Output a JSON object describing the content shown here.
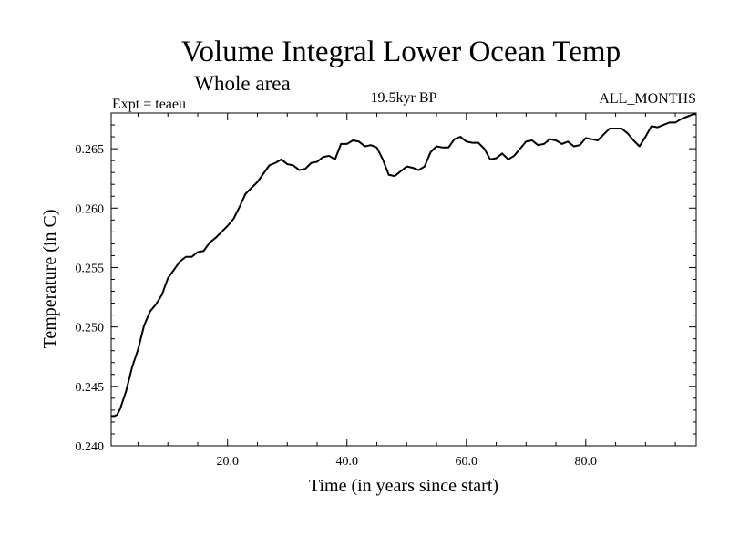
{
  "chart_data": {
    "type": "line",
    "title": "Volume Integral Lower Ocean Temp",
    "subtitle": "Whole area",
    "left_label": "Expt = teaeu",
    "center_label": "19.5kyr BP",
    "right_label": "ALL_MONTHS",
    "xlabel": "Time (in years since start)",
    "ylabel": "Temperature (in C)",
    "xlim": [
      0.5,
      98.5
    ],
    "ylim": [
      0.24,
      0.268
    ],
    "x_ticks": [
      20.0,
      40.0,
      60.0,
      80.0
    ],
    "x_tick_labels": [
      "20.0",
      "40.0",
      "60.0",
      "80.0"
    ],
    "y_ticks": [
      0.24,
      0.245,
      0.25,
      0.255,
      0.26,
      0.265
    ],
    "y_tick_labels": [
      "0.240",
      "0.245",
      "0.250",
      "0.255",
      "0.260",
      "0.265"
    ],
    "series": [
      {
        "name": "Temperature",
        "color": "#000000",
        "x": [
          0.5,
          1,
          1.5,
          2,
          3,
          4,
          5,
          6,
          7,
          8,
          9,
          10,
          11,
          12,
          13,
          14,
          15,
          16,
          17,
          18,
          19,
          20,
          21,
          22,
          23,
          24,
          25,
          26,
          27,
          28,
          29,
          30,
          31,
          32,
          33,
          34,
          35,
          36,
          37,
          38,
          39,
          40,
          41,
          42,
          43,
          44,
          45,
          46,
          47,
          48,
          49,
          50,
          51,
          52,
          53,
          54,
          55,
          56,
          57,
          58,
          59,
          60,
          61,
          62,
          63,
          64,
          65,
          66,
          67,
          68,
          69,
          70,
          71,
          72,
          73,
          74,
          75,
          76,
          77,
          78,
          79,
          80,
          81,
          82,
          83,
          84,
          85,
          86,
          87,
          88,
          89,
          90,
          91,
          92,
          93,
          94,
          95,
          96,
          97,
          98,
          98.5
        ],
        "values": [
          0.2425,
          0.2425,
          0.2426,
          0.2431,
          0.2446,
          0.2466,
          0.2481,
          0.2501,
          0.2513,
          0.2519,
          0.2527,
          0.2541,
          0.2548,
          0.2555,
          0.2559,
          0.2559,
          0.2563,
          0.2564,
          0.2571,
          0.2575,
          0.258,
          0.2585,
          0.2591,
          0.2601,
          0.2612,
          0.2617,
          0.2622,
          0.2629,
          0.2636,
          0.2638,
          0.2641,
          0.2637,
          0.2636,
          0.2632,
          0.2633,
          0.2638,
          0.2639,
          0.2643,
          0.2644,
          0.2641,
          0.2654,
          0.2654,
          0.2657,
          0.2656,
          0.2652,
          0.2653,
          0.2651,
          0.2641,
          0.2628,
          0.2627,
          0.2631,
          0.2635,
          0.2634,
          0.2632,
          0.2635,
          0.2647,
          0.2652,
          0.2651,
          0.2651,
          0.2658,
          0.266,
          0.2656,
          0.2655,
          0.2655,
          0.265,
          0.2641,
          0.2642,
          0.2646,
          0.2641,
          0.2644,
          0.265,
          0.2656,
          0.2657,
          0.2653,
          0.2654,
          0.2658,
          0.2657,
          0.2654,
          0.2656,
          0.2652,
          0.2653,
          0.2659,
          0.2658,
          0.2657,
          0.2662,
          0.2667,
          0.2667,
          0.2667,
          0.2663,
          0.2657,
          0.2652,
          0.266,
          0.2669,
          0.2668,
          0.267,
          0.2672,
          0.2672,
          0.2675,
          0.2677,
          0.2679,
          0.2679
        ]
      }
    ]
  }
}
